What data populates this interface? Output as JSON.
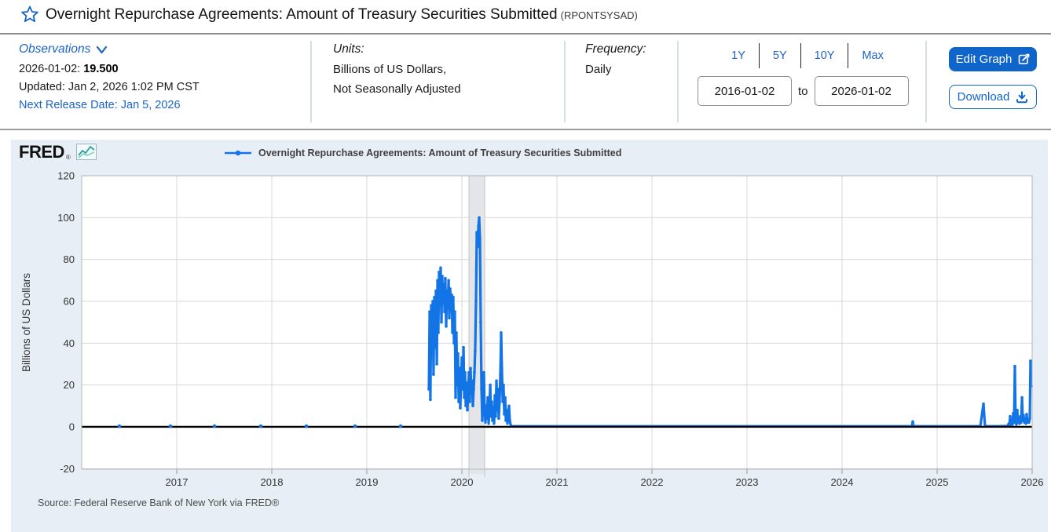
{
  "header": {
    "title": "Overnight Repurchase Agreements: Amount of Treasury Securities Submitted",
    "series_id": "(RPONTSYSAD)"
  },
  "info": {
    "observations": {
      "label": "Observations",
      "latest_date": "2026-01-02:",
      "latest_value": "19.500",
      "updated": "Updated: Jan 2, 2026 1:02 PM CST",
      "next_release": "Next Release Date: Jan 5, 2026"
    },
    "units": {
      "label": "Units:",
      "line1": "Billions of US Dollars,",
      "line2": "Not Seasonally Adjusted"
    },
    "frequency": {
      "label": "Frequency:",
      "value": "Daily"
    },
    "range": {
      "presets": [
        "1Y",
        "5Y",
        "10Y",
        "Max"
      ],
      "start": "2016-01-02",
      "to_label": "to",
      "end": "2026-01-02"
    },
    "actions": {
      "edit": "Edit Graph",
      "download": "Download"
    }
  },
  "chart": {
    "logo_text": "FRED",
    "logo_reg": "®",
    "legend": "Overnight Repurchase Agreements: Amount of Treasury Securities Submitted",
    "source": "Source: Federal Reserve Bank of New York via FRED®"
  },
  "icons": {
    "star": "star-outline",
    "observations_chevron": "chevron-down",
    "edit": "edit-pencil-in-square",
    "download": "download-arrow-tray",
    "fred_logo_chart": "line-chart"
  },
  "colors": {
    "accent_blue": "#1b63c8",
    "button_blue": "#1065cb",
    "line_blue": "#1274e5",
    "card_bg": "#e8eef5",
    "gridline": "#d8d8d8",
    "recession_band": "#e3e5e8",
    "zero_line": "#000000"
  },
  "chart_data": {
    "type": "line",
    "title": "Overnight Repurchase Agreements: Amount of Treasury Securities Submitted",
    "xlabel": "",
    "ylabel": "Billions of US Dollars",
    "xlim": [
      2016.0,
      2026.0
    ],
    "ylim": [
      -20,
      120
    ],
    "yticks": [
      -20,
      0,
      20,
      40,
      60,
      80,
      100,
      120
    ],
    "xticks": [
      2017,
      2018,
      2019,
      2020,
      2021,
      2022,
      2023,
      2024,
      2025,
      2026
    ],
    "grid": true,
    "legend_position": "top",
    "recession_band": [
      2020.074,
      2020.24
    ],
    "latest_observation": {
      "date": "2026-01-02",
      "value": 19.5
    },
    "isolated_points": [
      [
        2016.397,
        0.3
      ],
      [
        2016.934,
        0.3
      ],
      [
        2017.397,
        0.3
      ],
      [
        2017.884,
        0.3
      ],
      [
        2018.364,
        0.3
      ],
      [
        2018.876,
        0.3
      ],
      [
        2019.355,
        0.3
      ]
    ],
    "points": [
      [
        2019.653,
        18
      ],
      [
        2019.661,
        55
      ],
      [
        2019.669,
        13
      ],
      [
        2019.678,
        58
      ],
      [
        2019.686,
        42
      ],
      [
        2019.694,
        60
      ],
      [
        2019.702,
        25
      ],
      [
        2019.711,
        62
      ],
      [
        2019.719,
        38
      ],
      [
        2019.727,
        65
      ],
      [
        2019.736,
        30
      ],
      [
        2019.744,
        70
      ],
      [
        2019.752,
        45
      ],
      [
        2019.76,
        74
      ],
      [
        2019.769,
        58
      ],
      [
        2019.777,
        76
      ],
      [
        2019.785,
        50
      ],
      [
        2019.793,
        72
      ],
      [
        2019.802,
        60
      ],
      [
        2019.81,
        68
      ],
      [
        2019.818,
        55
      ],
      [
        2019.826,
        71
      ],
      [
        2019.835,
        48
      ],
      [
        2019.843,
        65
      ],
      [
        2019.851,
        58
      ],
      [
        2019.86,
        70
      ],
      [
        2019.868,
        52
      ],
      [
        2019.876,
        66
      ],
      [
        2019.884,
        60
      ],
      [
        2019.893,
        63
      ],
      [
        2019.901,
        45
      ],
      [
        2019.909,
        62
      ],
      [
        2019.917,
        40
      ],
      [
        2019.926,
        55
      ],
      [
        2019.934,
        14
      ],
      [
        2019.942,
        45
      ],
      [
        2019.95,
        20
      ],
      [
        2019.959,
        35
      ],
      [
        2019.967,
        12
      ],
      [
        2019.975,
        28
      ],
      [
        2019.983,
        9
      ],
      [
        2019.992,
        22
      ],
      [
        2020.0,
        33
      ],
      [
        2020.008,
        18
      ],
      [
        2020.017,
        38
      ],
      [
        2020.025,
        14
      ],
      [
        2020.033,
        26
      ],
      [
        2020.041,
        10
      ],
      [
        2020.05,
        21
      ],
      [
        2020.058,
        8
      ],
      [
        2020.066,
        16
      ],
      [
        2020.074,
        26
      ],
      [
        2020.083,
        12
      ],
      [
        2020.091,
        28
      ],
      [
        2020.099,
        16
      ],
      [
        2020.107,
        22
      ],
      [
        2020.116,
        10
      ],
      [
        2020.124,
        18
      ],
      [
        2020.132,
        26
      ],
      [
        2020.14,
        36
      ],
      [
        2020.149,
        60
      ],
      [
        2020.157,
        93
      ],
      [
        2020.165,
        86
      ],
      [
        2020.174,
        96
      ],
      [
        2020.182,
        100
      ],
      [
        2020.19,
        90
      ],
      [
        2020.198,
        50
      ],
      [
        2020.207,
        18
      ],
      [
        2020.215,
        3
      ],
      [
        2020.223,
        12
      ],
      [
        2020.231,
        26
      ],
      [
        2020.24,
        8
      ],
      [
        2020.248,
        2
      ],
      [
        2020.256,
        10
      ],
      [
        2020.264,
        4
      ],
      [
        2020.273,
        14
      ],
      [
        2020.281,
        1.5
      ],
      [
        2020.289,
        8
      ],
      [
        2020.298,
        20
      ],
      [
        2020.306,
        5
      ],
      [
        2020.314,
        12
      ],
      [
        2020.322,
        3
      ],
      [
        2020.331,
        9
      ],
      [
        2020.339,
        1.5
      ],
      [
        2020.347,
        15
      ],
      [
        2020.355,
        5
      ],
      [
        2020.364,
        22
      ],
      [
        2020.372,
        8
      ],
      [
        2020.38,
        18
      ],
      [
        2020.388,
        4
      ],
      [
        2020.397,
        12
      ],
      [
        2020.405,
        25
      ],
      [
        2020.413,
        45
      ],
      [
        2020.421,
        28
      ],
      [
        2020.43,
        12
      ],
      [
        2020.438,
        20
      ],
      [
        2020.446,
        6
      ],
      [
        2020.455,
        14
      ],
      [
        2020.463,
        3
      ],
      [
        2020.471,
        8
      ],
      [
        2020.479,
        1.5
      ],
      [
        2020.488,
        6
      ],
      [
        2020.496,
        10
      ],
      [
        2020.504,
        3
      ],
      [
        2020.512,
        1
      ],
      [
        2020.521,
        0.5
      ],
      [
        2020.529,
        0.3
      ],
      [
        2020.6,
        0.3
      ],
      [
        2020.93,
        0.3
      ],
      [
        2021.42,
        0.3
      ],
      [
        2021.92,
        0.3
      ],
      [
        2022.41,
        0.3
      ],
      [
        2022.91,
        0.3
      ],
      [
        2023.4,
        0.3
      ],
      [
        2023.9,
        0.3
      ],
      [
        2024.4,
        0.3
      ],
      [
        2024.71,
        0.3
      ],
      [
        2024.736,
        0.3
      ],
      [
        2024.744,
        2.5
      ],
      [
        2024.752,
        0.3
      ],
      [
        2025.06,
        0.3
      ],
      [
        2025.455,
        0.3
      ],
      [
        2025.488,
        11
      ],
      [
        2025.504,
        0.3
      ],
      [
        2025.636,
        0.3
      ],
      [
        2025.744,
        0.4
      ],
      [
        2025.752,
        1.5
      ],
      [
        2025.76,
        0.5
      ],
      [
        2025.769,
        5
      ],
      [
        2025.777,
        1
      ],
      [
        2025.785,
        2.5
      ],
      [
        2025.793,
        1
      ],
      [
        2025.802,
        6.5
      ],
      [
        2025.81,
        2
      ],
      [
        2025.818,
        29
      ],
      [
        2025.826,
        2.5
      ],
      [
        2025.835,
        1
      ],
      [
        2025.843,
        8
      ],
      [
        2025.851,
        2
      ],
      [
        2025.86,
        3.5
      ],
      [
        2025.868,
        1.5
      ],
      [
        2025.876,
        5
      ],
      [
        2025.884,
        2
      ],
      [
        2025.893,
        14
      ],
      [
        2025.901,
        3
      ],
      [
        2025.909,
        5.5
      ],
      [
        2025.917,
        2
      ],
      [
        2025.926,
        3.5
      ],
      [
        2025.934,
        1.5
      ],
      [
        2025.942,
        6
      ],
      [
        2025.95,
        2
      ],
      [
        2025.959,
        3
      ],
      [
        2025.967,
        2
      ],
      [
        2025.975,
        4
      ],
      [
        2025.983,
        31.5
      ],
      [
        2025.992,
        19.5
      ]
    ]
  }
}
